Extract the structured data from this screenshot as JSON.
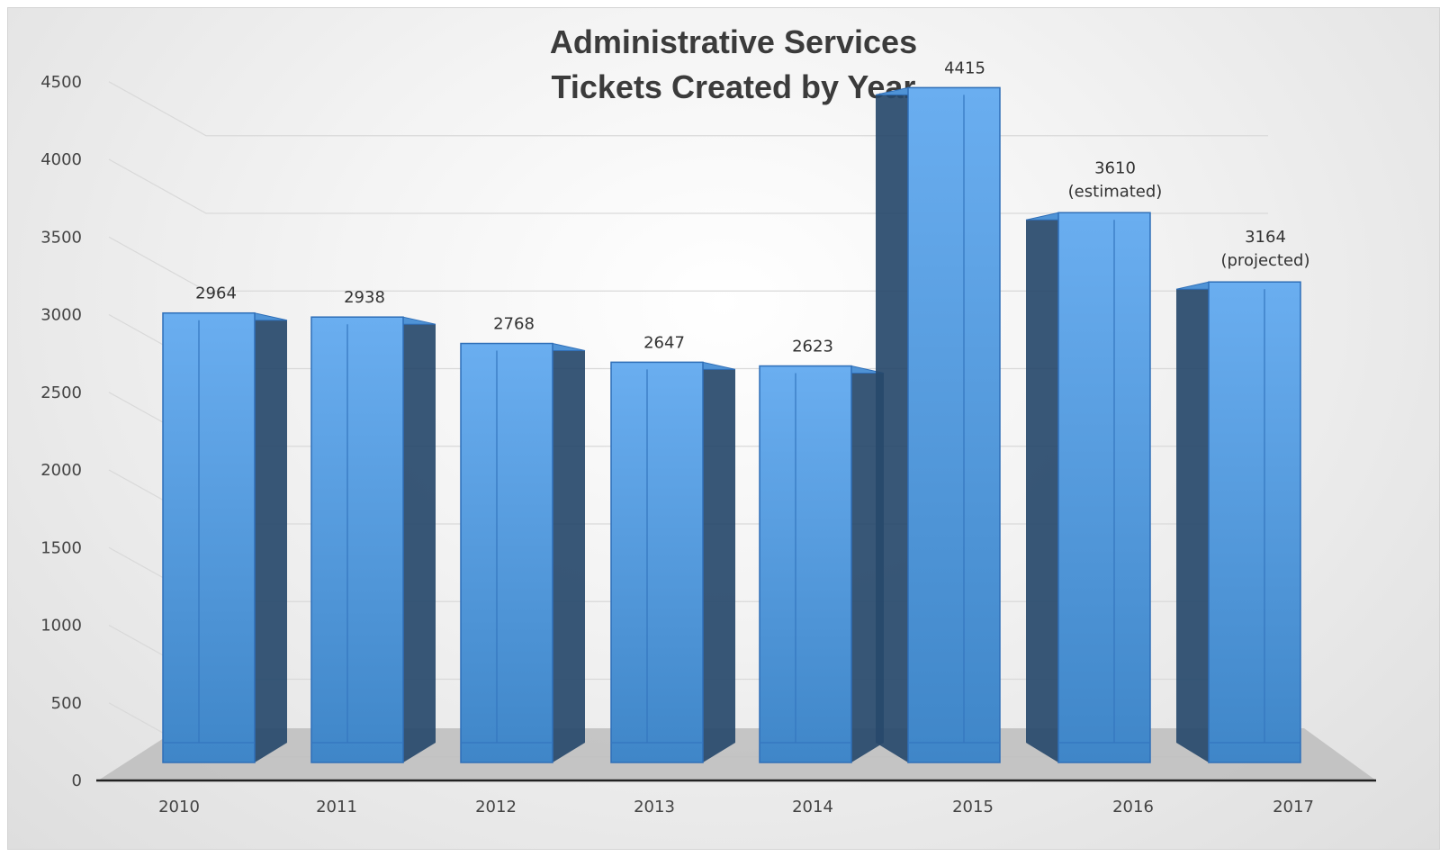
{
  "chart_data": {
    "type": "bar",
    "title_lines": [
      "Administrative Services",
      "Tickets Created by Year"
    ],
    "categories": [
      "2010",
      "2011",
      "2012",
      "2013",
      "2014",
      "2015",
      "2016",
      "2017"
    ],
    "values": [
      2964,
      2938,
      2768,
      2647,
      2623,
      4415,
      3610,
      3164
    ],
    "value_labels": [
      "2964",
      "2938",
      "2768",
      "2647",
      "2623",
      "4415",
      "3610",
      "3164"
    ],
    "value_notes": [
      "",
      "",
      "",
      "",
      "",
      "",
      "(estimated)",
      "(projected)"
    ],
    "y_ticks": [
      "0",
      "500",
      "1000",
      "1500",
      "2000",
      "2500",
      "3000",
      "3500",
      "4000",
      "4500"
    ],
    "ylim": [
      0,
      4500
    ],
    "grid": true,
    "legend": "none",
    "style": "3d-column",
    "colors": {
      "bar_front_top": "#6aaef0",
      "bar_front_bottom": "#3f86c8",
      "bar_side": "#27496b",
      "bar_edge": "#2f6fb8",
      "floor": "#bdbdbd",
      "axis": "#222222",
      "grid": "#d9d9d9"
    }
  }
}
